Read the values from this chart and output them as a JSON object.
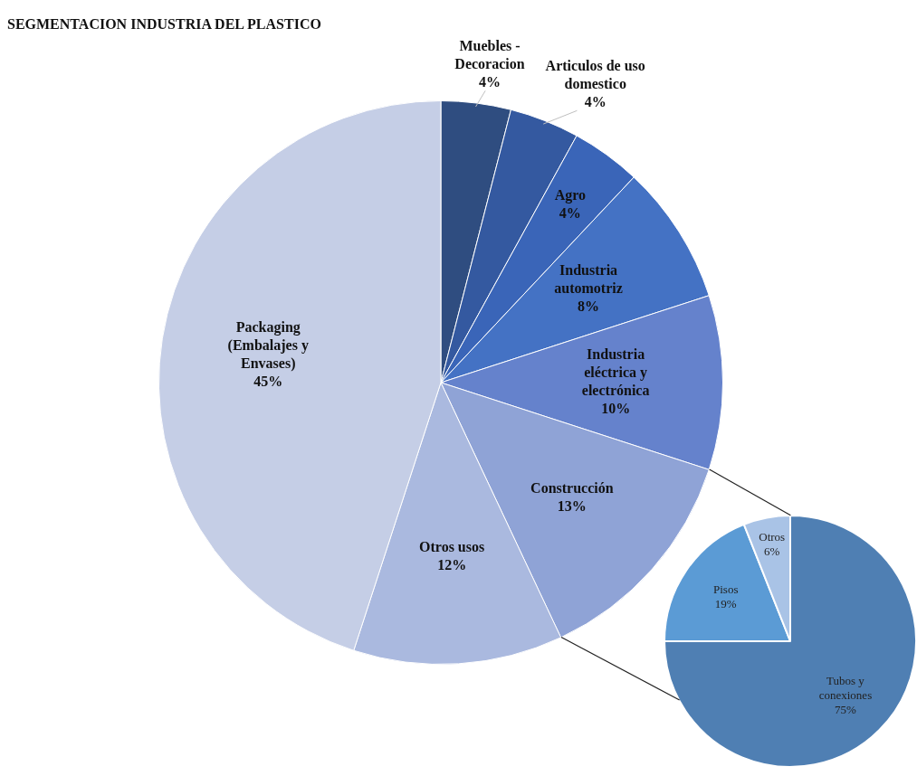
{
  "chart_data": [
    {
      "type": "pie",
      "title": "SEGMENTACION INDUSTRIA DEL PLASTICO",
      "categories": [
        "Muebles - Decoracion",
        "Articulos de uso domestico",
        "Agro",
        "Industria automotriz",
        "Industria eléctrica y electrónica",
        "Construcción",
        "Otros usos",
        "Packaging (Embalajes y Envases)"
      ],
      "values": [
        4,
        4,
        4,
        8,
        10,
        13,
        12,
        45
      ],
      "value_labels": [
        "4%",
        "4%",
        "4%",
        "8%",
        "10%",
        "13%",
        "12%",
        "45%"
      ],
      "colors": [
        "#2f4d80",
        "#3459a0",
        "#3a65b8",
        "#4472c4",
        "#6582cc",
        "#8fa3d6",
        "#aab9df",
        "#c5cee6"
      ]
    },
    {
      "type": "pie",
      "categories": [
        "Tubos y conexiones",
        "Pisos",
        "Otros"
      ],
      "values": [
        75,
        19,
        6
      ],
      "value_labels": [
        "75%",
        "19%",
        "6%"
      ],
      "colors": [
        "#4f7fb3",
        "#5b9bd5",
        "#a9c3e6"
      ]
    }
  ]
}
